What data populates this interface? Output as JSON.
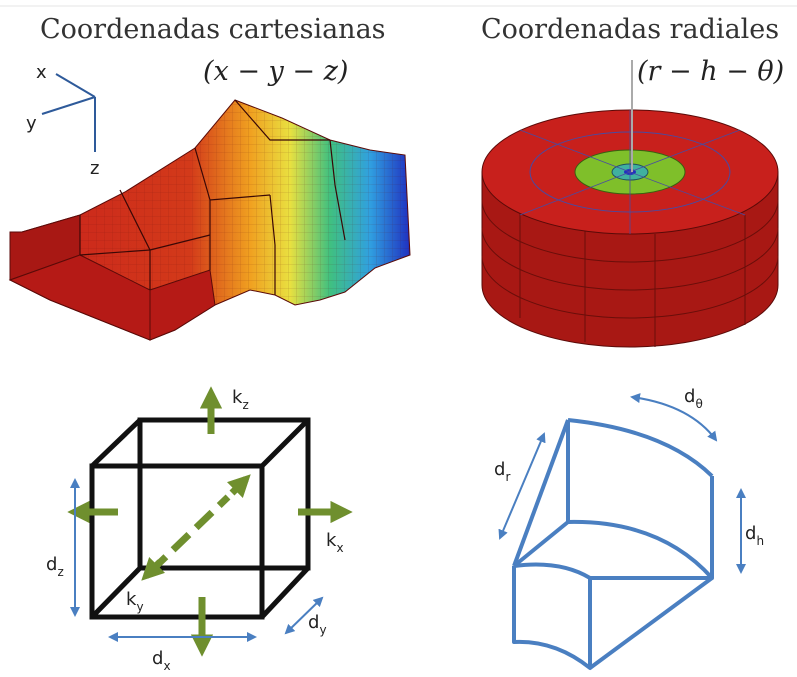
{
  "titles": {
    "cartesian": "Coordenadas cartesianas",
    "cartesian_math": "(x − y − z)",
    "radial": "Coordenadas radiales",
    "radial_math": "(r − h − θ)"
  },
  "axes": {
    "x": "x",
    "y": "y",
    "z": "z"
  },
  "cube_labels": {
    "kz": {
      "base": "k",
      "sub": "z"
    },
    "kx": {
      "base": "k",
      "sub": "x"
    },
    "ky": {
      "base": "k",
      "sub": "y"
    },
    "dz": {
      "base": "d",
      "sub": "z"
    },
    "dx": {
      "base": "d",
      "sub": "x"
    },
    "dy": {
      "base": "d",
      "sub": "y"
    }
  },
  "sector_labels": {
    "dtheta": {
      "base": "d",
      "sub": "θ"
    },
    "dr": {
      "base": "d",
      "sub": "r"
    },
    "dh": {
      "base": "d",
      "sub": "h"
    }
  },
  "colors": {
    "mesh_red": "#c8201c",
    "arrow_green": "#6f8f2e",
    "blue_line": "#4a7fc1",
    "ring_green": "#7fbf2a"
  }
}
